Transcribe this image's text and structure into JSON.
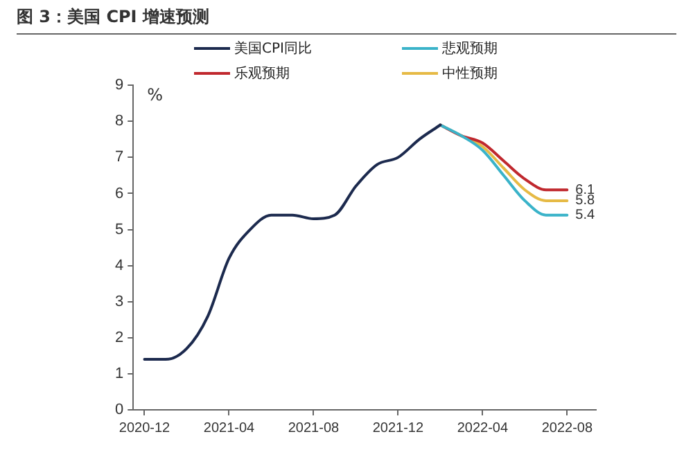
{
  "chart_data": {
    "type": "line",
    "title": "图 3：美国 CPI 增速预测",
    "ylabel": "%",
    "xlim": [
      "2020-11-15",
      "2022-09-12"
    ],
    "xticks": [
      "2020-12",
      "2021-04",
      "2021-08",
      "2021-12",
      "2022-04",
      "2022-08"
    ],
    "ylim": [
      0,
      9
    ],
    "yticks": [
      0,
      1,
      2,
      3,
      4,
      5,
      6,
      7,
      8,
      9
    ],
    "grid": false,
    "legend": "top",
    "marker": "none",
    "line_style": "solid",
    "series": [
      {
        "name": "美国CPI同比",
        "color": "#1c2a4e",
        "x": [
          "2020-12",
          "2021-01",
          "2021-02",
          "2021-03",
          "2021-04",
          "2021-05",
          "2021-06",
          "2021-07",
          "2021-08",
          "2021-09",
          "2021-10",
          "2021-11",
          "2021-12",
          "2022-01",
          "2022-02"
        ],
        "values": [
          1.4,
          1.4,
          1.7,
          2.6,
          4.2,
          5.0,
          5.4,
          5.4,
          5.3,
          5.4,
          6.2,
          6.8,
          7.0,
          7.5,
          7.9
        ]
      },
      {
        "name": "悲观预期",
        "color": "#3ab3c9",
        "x": [
          "2022-02",
          "2022-03",
          "2022-04",
          "2022-05",
          "2022-06",
          "2022-07",
          "2022-08"
        ],
        "values": [
          7.9,
          7.6,
          7.2,
          6.5,
          5.8,
          5.4,
          5.4
        ],
        "value_labels": [
          null,
          null,
          null,
          null,
          null,
          null,
          "5.4"
        ]
      },
      {
        "name": "乐观预期",
        "color": "#c0282e",
        "x": [
          "2022-02",
          "2022-03",
          "2022-04",
          "2022-05",
          "2022-06",
          "2022-07",
          "2022-08"
        ],
        "values": [
          7.9,
          7.6,
          7.4,
          6.9,
          6.4,
          6.1,
          6.1
        ],
        "value_labels": [
          null,
          null,
          null,
          null,
          null,
          null,
          "6.1"
        ]
      },
      {
        "name": "中性预期",
        "color": "#e6ba45",
        "x": [
          "2022-02",
          "2022-03",
          "2022-04",
          "2022-05",
          "2022-06",
          "2022-07",
          "2022-08"
        ],
        "values": [
          7.9,
          7.6,
          7.3,
          6.7,
          6.1,
          5.8,
          5.8
        ],
        "value_labels": [
          null,
          null,
          null,
          null,
          null,
          null,
          "5.8"
        ]
      }
    ]
  }
}
